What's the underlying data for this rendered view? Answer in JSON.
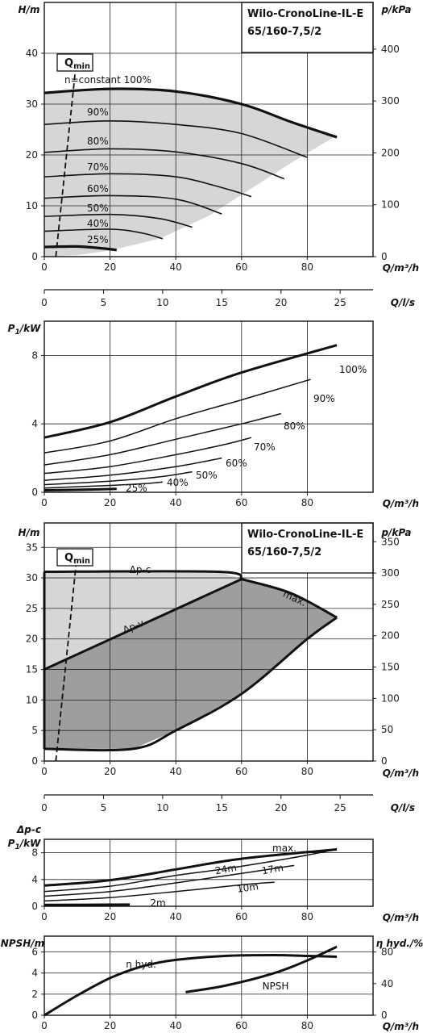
{
  "chart_data": [
    {
      "id": "h_q_speed",
      "type": "line",
      "title_lines": [
        "Wilo-CronoLine-IL-E",
        "65/160-7,5/2"
      ],
      "ylabel": "H/m",
      "y2label": "p/kPa",
      "xlabel": "Q/m³/h",
      "xlim": [
        0,
        100
      ],
      "ylim": [
        0,
        50
      ],
      "y2lim": [
        0,
        490
      ],
      "x_ticks": [
        "0",
        "20",
        "40",
        "60",
        "80"
      ],
      "y_ticks": [
        "0",
        "10",
        "20",
        "30",
        "40"
      ],
      "y2_ticks": [
        "0",
        "100",
        "200",
        "300",
        "400"
      ],
      "qmin_label": "Q",
      "qmin_sub": "min",
      "series": [
        {
          "name": "n=constant 100%",
          "points": [
            [
              0,
              32.2
            ],
            [
              20,
              33
            ],
            [
              40,
              32.5
            ],
            [
              60,
              30
            ],
            [
              75,
              26.5
            ],
            [
              89,
              23.5
            ]
          ]
        },
        {
          "name": "90%",
          "points": [
            [
              0,
              26
            ],
            [
              20,
              26.7
            ],
            [
              40,
              26
            ],
            [
              60,
              24.2
            ],
            [
              80,
              19.5
            ]
          ]
        },
        {
          "name": "80%",
          "points": [
            [
              0,
              20.5
            ],
            [
              20,
              21.2
            ],
            [
              40,
              20.6
            ],
            [
              60,
              18.3
            ],
            [
              73,
              15.3
            ]
          ]
        },
        {
          "name": "70%",
          "points": [
            [
              0,
              15.7
            ],
            [
              20,
              16.3
            ],
            [
              40,
              15.7
            ],
            [
              55,
              13.4
            ],
            [
              63,
              11.8
            ]
          ]
        },
        {
          "name": "60%",
          "points": [
            [
              0,
              11.5
            ],
            [
              20,
              12
            ],
            [
              40,
              11.3
            ],
            [
              54,
              8.4
            ]
          ]
        },
        {
          "name": "50%",
          "points": [
            [
              0,
              7.9
            ],
            [
              20,
              8.3
            ],
            [
              35,
              7.5
            ],
            [
              45,
              5.8
            ]
          ]
        },
        {
          "name": "40%",
          "points": [
            [
              0,
              5
            ],
            [
              20,
              5.4
            ],
            [
              30,
              4.6
            ],
            [
              36,
              3.5
            ]
          ]
        },
        {
          "name": "25%",
          "points": [
            [
              0,
              1.9
            ],
            [
              10,
              2
            ],
            [
              18,
              1.6
            ],
            [
              22,
              1.3
            ]
          ]
        }
      ],
      "envelope_lower": [
        [
          0,
          0
        ],
        [
          10,
          0.3
        ],
        [
          20,
          1.2
        ],
        [
          35,
          3.5
        ],
        [
          50,
          8
        ],
        [
          62,
          13
        ],
        [
          74,
          18
        ],
        [
          88,
          23.5
        ]
      ],
      "qmin_line": [
        [
          3.5,
          0
        ],
        [
          10,
          40
        ]
      ]
    },
    {
      "id": "q_ls_axis",
      "type": "axis",
      "xlabel": "Q/l/s",
      "ticks": [
        {
          "label": "0",
          "v": 0
        },
        {
          "label": "5",
          "v": 5
        },
        {
          "label": "10",
          "v": 10
        },
        {
          "label": "15",
          "v": 15
        },
        {
          "label": "20",
          "v": 20
        },
        {
          "label": "25",
          "v": 25
        }
      ],
      "xlim": [
        0,
        27.78
      ]
    },
    {
      "id": "p1_speed",
      "type": "line",
      "ylabel": "P1/kW",
      "ylabel_main": "P",
      "ylabel_sub": "1",
      "ylabel_rest": "/kW",
      "xlabel": "Q/m³/h",
      "xlim": [
        0,
        100
      ],
      "ylim": [
        0,
        10
      ],
      "x_ticks": [
        "0",
        "20",
        "40",
        "60",
        "80"
      ],
      "y_ticks": [
        "0",
        "4",
        "8"
      ],
      "series": [
        {
          "name": "100%",
          "points": [
            [
              0,
              3.2
            ],
            [
              20,
              4.1
            ],
            [
              40,
              5.6
            ],
            [
              60,
              7.0
            ],
            [
              89,
              8.6
            ]
          ]
        },
        {
          "name": "90%",
          "points": [
            [
              0,
              2.3
            ],
            [
              20,
              3.0
            ],
            [
              40,
              4.3
            ],
            [
              60,
              5.4
            ],
            [
              81,
              6.6
            ]
          ]
        },
        {
          "name": "80%",
          "points": [
            [
              0,
              1.6
            ],
            [
              20,
              2.2
            ],
            [
              40,
              3.1
            ],
            [
              60,
              4.0
            ],
            [
              72,
              4.6
            ]
          ]
        },
        {
          "name": "70%",
          "points": [
            [
              0,
              1.1
            ],
            [
              20,
              1.5
            ],
            [
              40,
              2.2
            ],
            [
              55,
              2.8
            ],
            [
              63,
              3.2
            ]
          ]
        },
        {
          "name": "60%",
          "points": [
            [
              0,
              0.7
            ],
            [
              20,
              1.0
            ],
            [
              40,
              1.5
            ],
            [
              54,
              2.0
            ]
          ]
        },
        {
          "name": "50%",
          "points": [
            [
              0,
              0.45
            ],
            [
              20,
              0.65
            ],
            [
              35,
              0.9
            ],
            [
              45,
              1.2
            ]
          ]
        },
        {
          "name": "40%",
          "points": [
            [
              0,
              0.25
            ],
            [
              20,
              0.4
            ],
            [
              30,
              0.5
            ],
            [
              36,
              0.6
            ]
          ]
        },
        {
          "name": "25%",
          "points": [
            [
              0,
              0.12
            ],
            [
              12,
              0.15
            ],
            [
              22,
              0.2
            ]
          ]
        }
      ]
    },
    {
      "id": "h_q_control",
      "type": "area",
      "title_lines": [
        "Wilo-CronoLine-IL-E",
        "65/160-7,5/2"
      ],
      "ylabel": "H/m",
      "y2label": "p/kPa",
      "xlabel": "Q/m³/h",
      "xlim": [
        0,
        100
      ],
      "ylim": [
        0,
        39
      ],
      "y2lim": [
        0,
        380
      ],
      "x_ticks": [
        "0",
        "20",
        "40",
        "60",
        "80"
      ],
      "y_ticks": [
        "0",
        "5",
        "10",
        "15",
        "20",
        "25",
        "30",
        "35"
      ],
      "y2_ticks": [
        "0",
        "50",
        "100",
        "150",
        "200",
        "250",
        "300",
        "350"
      ],
      "qmin_label": "Q",
      "qmin_sub": "min",
      "annotations": {
        "dpc": "Δp-c",
        "dpv": "Δp-v",
        "max": "max."
      },
      "series": [
        {
          "name": "Δp-c",
          "points": [
            [
              0,
              31
            ],
            [
              53,
              31
            ],
            [
              60,
              29.8
            ]
          ]
        },
        {
          "name": "Δp-v",
          "points": [
            [
              0,
              15
            ],
            [
              60,
              29.8
            ]
          ]
        },
        {
          "name": "max.",
          "points": [
            [
              60,
              29.8
            ],
            [
              75,
              27.5
            ],
            [
              89,
              23.5
            ]
          ]
        },
        {
          "name": "min",
          "points": [
            [
              0,
              2
            ],
            [
              27,
              2
            ],
            [
              40,
              5
            ],
            [
              60,
              11
            ],
            [
              80,
              20
            ],
            [
              89,
              23.5
            ]
          ]
        }
      ],
      "light_region": [
        [
          0,
          31
        ],
        [
          53,
          31
        ],
        [
          60,
          29.8
        ],
        [
          0,
          15
        ]
      ],
      "dark_region": [
        [
          0,
          15
        ],
        [
          60,
          29.8
        ],
        [
          75,
          27.5
        ],
        [
          89,
          23.5
        ],
        [
          80,
          20
        ],
        [
          60,
          11
        ],
        [
          40,
          5
        ],
        [
          27,
          2
        ],
        [
          0,
          2
        ]
      ],
      "qmin_line": [
        [
          3.5,
          0
        ],
        [
          10,
          34
        ]
      ]
    },
    {
      "id": "q_ls_axis_2",
      "type": "axis",
      "xlabel": "Q/l/s",
      "ticks": [
        {
          "label": "0",
          "v": 0
        },
        {
          "label": "5",
          "v": 5
        },
        {
          "label": "10",
          "v": 10
        },
        {
          "label": "15",
          "v": 15
        },
        {
          "label": "20",
          "v": 20
        },
        {
          "label": "25",
          "v": 25
        }
      ],
      "xlim": [
        0,
        27.78
      ]
    },
    {
      "id": "p1_control",
      "type": "line",
      "ylabel_top": "Δp-c",
      "ylabel_main": "P",
      "ylabel_sub": "1",
      "ylabel_rest": "/kW",
      "xlabel": "Q/m³/h",
      "xlim": [
        0,
        100
      ],
      "ylim": [
        0,
        10
      ],
      "x_ticks": [
        "0",
        "20",
        "40",
        "60",
        "80"
      ],
      "y_ticks": [
        "0",
        "4",
        "8"
      ],
      "series": [
        {
          "name": "max.",
          "points": [
            [
              0,
              3.1
            ],
            [
              20,
              3.9
            ],
            [
              40,
              5.5
            ],
            [
              60,
              7.1
            ],
            [
              89,
              8.5
            ]
          ]
        },
        {
          "name": "24m",
          "points": [
            [
              0,
              2.2
            ],
            [
              20,
              3.0
            ],
            [
              40,
              4.6
            ],
            [
              55,
              5.6
            ],
            [
              75,
              7.2
            ],
            [
              88,
              8.4
            ]
          ]
        },
        {
          "name": "17m",
          "points": [
            [
              0,
              1.5
            ],
            [
              20,
              2.2
            ],
            [
              40,
              3.5
            ],
            [
              60,
              4.9
            ],
            [
              76,
              6.1
            ]
          ]
        },
        {
          "name": "10m",
          "points": [
            [
              0,
              0.8
            ],
            [
              20,
              1.3
            ],
            [
              40,
              2.2
            ],
            [
              60,
              3.2
            ],
            [
              70,
              3.6
            ]
          ]
        },
        {
          "name": "2m",
          "points": [
            [
              0,
              0.2
            ],
            [
              26,
              0.25
            ]
          ]
        }
      ]
    },
    {
      "id": "npsh_eta",
      "type": "line",
      "ylabel": "NPSH/m",
      "y2label": "η hyd./%",
      "xlabel": "Q/m³/h",
      "xlim": [
        0,
        100
      ],
      "ylim": [
        0,
        7.5
      ],
      "y2lim": [
        0,
        100
      ],
      "x_ticks": [
        "0",
        "20",
        "40",
        "60",
        "80"
      ],
      "y_ticks": [
        "0",
        "2",
        "4",
        "6"
      ],
      "y2_ticks": [
        "0",
        "40",
        "80"
      ],
      "series": [
        {
          "name": "η hyd.",
          "axis": "y2",
          "points": [
            [
              0,
              0
            ],
            [
              10,
              25
            ],
            [
              20,
              47
            ],
            [
              30,
              62
            ],
            [
              40,
              70
            ],
            [
              55,
              75
            ],
            [
              70,
              76
            ],
            [
              80,
              75
            ],
            [
              89,
              74
            ]
          ]
        },
        {
          "name": "NPSH",
          "axis": "y",
          "points": [
            [
              43,
              2.2
            ],
            [
              55,
              2.8
            ],
            [
              70,
              4.0
            ],
            [
              80,
              5.2
            ],
            [
              89,
              6.5
            ]
          ]
        }
      ]
    }
  ],
  "colors": {
    "fill_light": "#d6d6d6",
    "fill_dark": "#9e9e9e",
    "line": "#111111",
    "grid": "#222222"
  }
}
